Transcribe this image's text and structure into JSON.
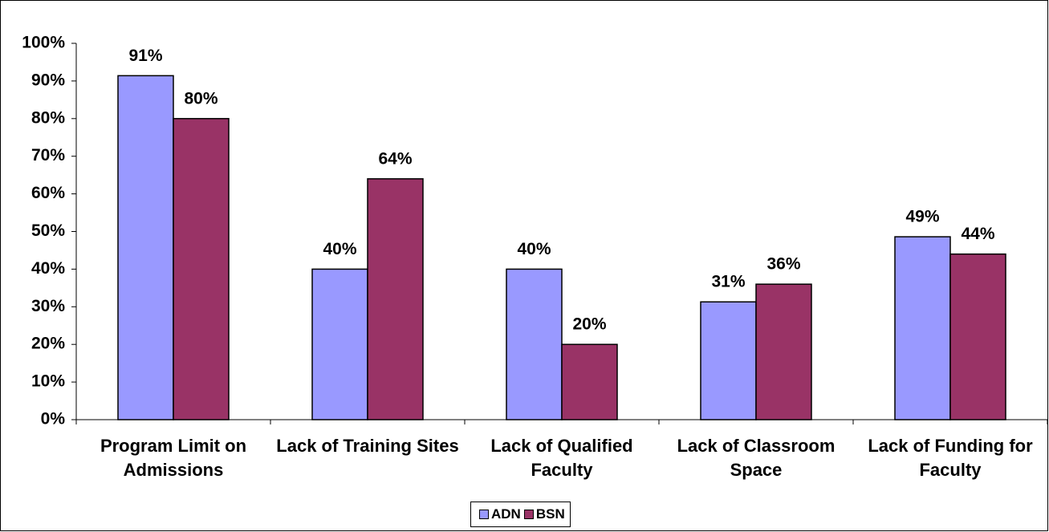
{
  "chart_data": {
    "type": "bar",
    "categories": [
      "Program Limit on Admissions",
      "Lack of Training Sites",
      "Lack of Qualified Faculty",
      "Lack of Classroom Space",
      "Lack of Funding for Faculty"
    ],
    "series": [
      {
        "name": "ADN",
        "color": "#9999ff",
        "values": [
          91.4,
          40,
          40,
          31.3,
          48.6
        ],
        "value_labels": [
          "91%",
          "40%",
          "40%",
          "31%",
          "49%"
        ]
      },
      {
        "name": "BSN",
        "color": "#993366",
        "values": [
          80,
          64,
          20,
          36,
          44
        ],
        "value_labels": [
          "80%",
          "64%",
          "20%",
          "36%",
          "44%"
        ]
      }
    ],
    "ylim": [
      0,
      100
    ],
    "yticks": [
      {
        "value": 0,
        "label": "0%"
      },
      {
        "value": 10,
        "label": "10%"
      },
      {
        "value": 20,
        "label": "20%"
      },
      {
        "value": 30,
        "label": "30%"
      },
      {
        "value": 40,
        "label": "40%"
      },
      {
        "value": 50,
        "label": "50%"
      },
      {
        "value": 60,
        "label": "60%"
      },
      {
        "value": 70,
        "label": "70%"
      },
      {
        "value": 80,
        "label": "80%"
      },
      {
        "value": 90,
        "label": "90%"
      },
      {
        "value": 100,
        "label": "100%"
      }
    ],
    "grid": false,
    "legend": "bottom"
  }
}
